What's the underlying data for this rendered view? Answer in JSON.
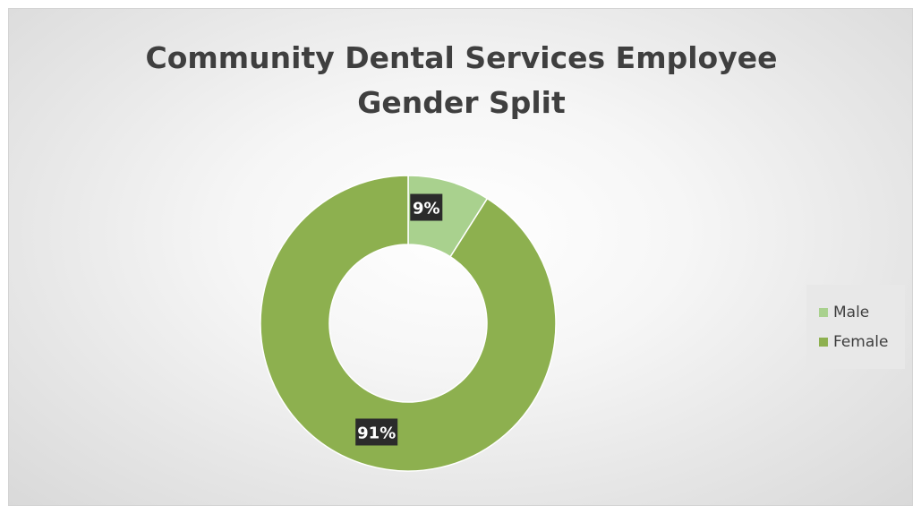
{
  "chart_data": {
    "type": "pie",
    "title": "Community Dental Services Employee\nGender Split",
    "style": "donut",
    "slices": [
      {
        "name": "Male",
        "value": 9,
        "label": "9%",
        "color": "#a9d18e"
      },
      {
        "name": "Female",
        "value": 91,
        "label": "91%",
        "color": "#8db04f"
      }
    ],
    "legend": {
      "placement": "right"
    },
    "label_style": {
      "background": "#2b2b2b",
      "text_color": "#ffffff"
    }
  }
}
